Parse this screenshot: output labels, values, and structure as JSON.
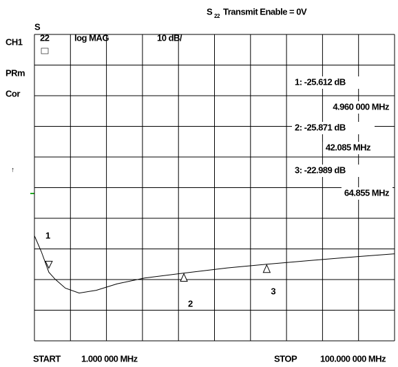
{
  "header": {
    "title_s": "S",
    "title_sub": "22",
    "title_rest": "Transmit Enable = 0V",
    "channel": "CH1",
    "param_s": "S",
    "param_sub": "22",
    "format": "log MAG",
    "scale": "10 dB/",
    "status": [
      "PRm",
      "Cor"
    ],
    "ref_arrow": "↑"
  },
  "chart_data": {
    "type": "line",
    "x": [
      1,
      2.9,
      4.96,
      6.7,
      9.5,
      13.3,
      18.0,
      23.7,
      31.3,
      42.085,
      54.0,
      64.855,
      76.7,
      90.0,
      100
    ],
    "series": [
      {
        "color": "#000000",
        "values": [
          -13.7,
          -18.9,
          -25.6,
          -27.9,
          -30.8,
          -32.4,
          -31.5,
          -29.4,
          -27.5,
          -25.9,
          -24.2,
          -23.0,
          -21.8,
          -20.5,
          -19.6
        ]
      }
    ],
    "xlim": [
      1,
      100
    ],
    "ylim": [
      -48,
      52
    ],
    "xticks": [
      {
        "value": 1,
        "label": "1.000 000 MHz"
      },
      {
        "value": 100,
        "label": "100.000 000 MHz"
      }
    ],
    "start_label": "START",
    "stop_label": "STOP",
    "markers": [
      {
        "name": "1",
        "x": 4.96,
        "value": -25.612,
        "value_label": "1: -25.612 dB",
        "x_label": "4.960 000 MHz"
      },
      {
        "name": "2",
        "x": 42.085,
        "value": -25.871,
        "value_label": "2: -25.871 dB",
        "x_label": "42.085 MHz"
      },
      {
        "name": "3",
        "x": 64.855,
        "value": -22.989,
        "value_label": "3: -22.989 dB",
        "x_label": "64.855 MHz"
      }
    ]
  }
}
